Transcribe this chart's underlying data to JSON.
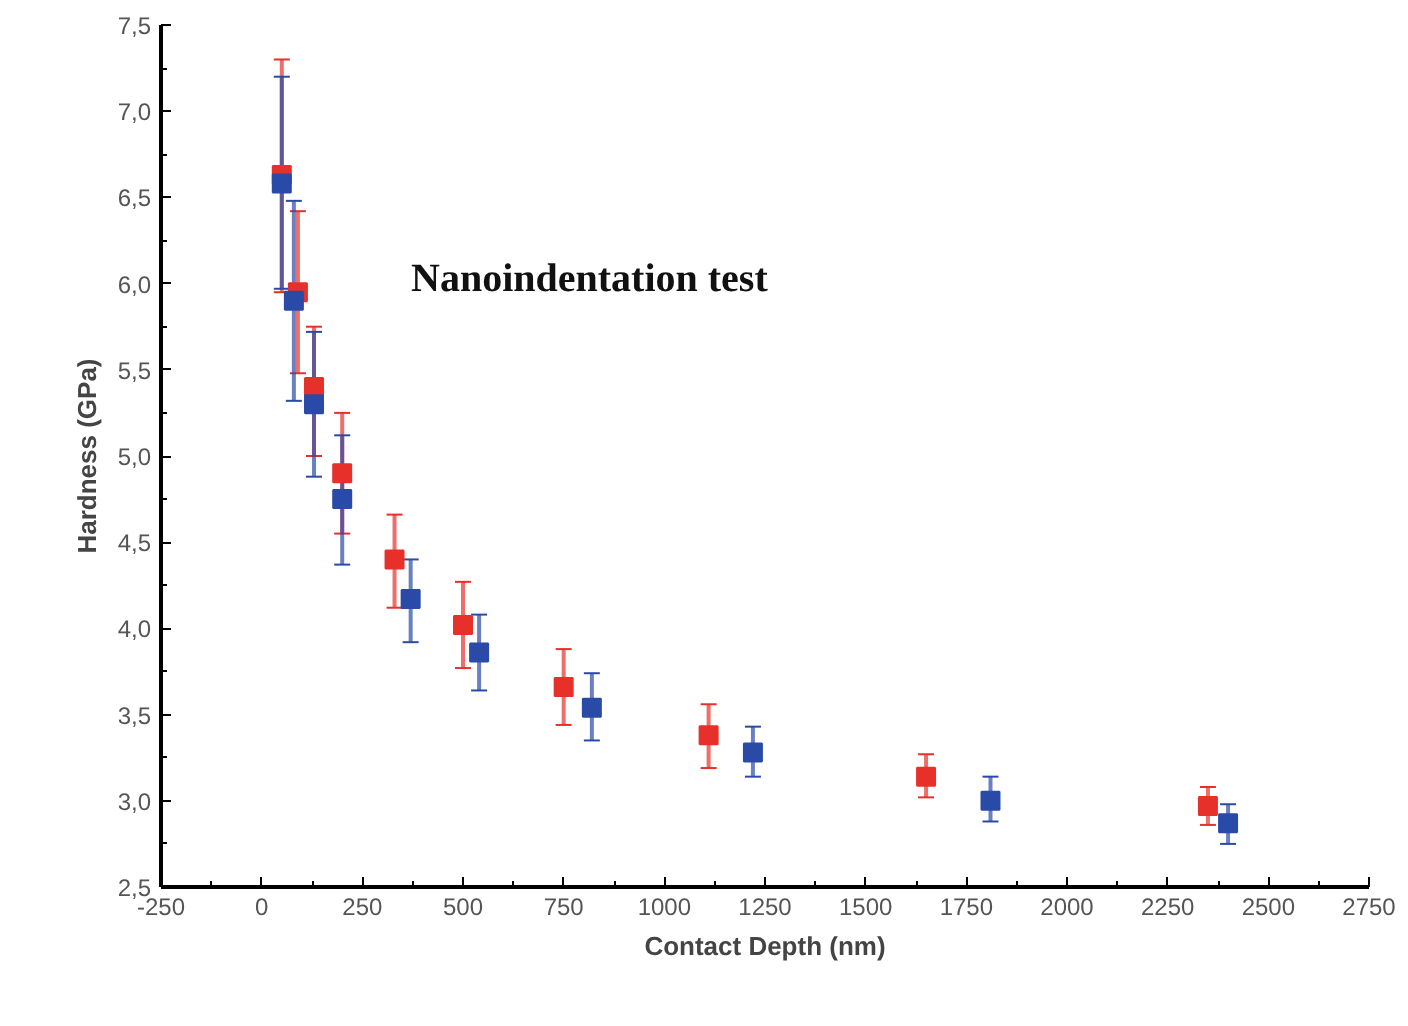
{
  "chart_data": {
    "type": "scatter",
    "xlabel": "Contact Depth (nm)",
    "ylabel": "Hardness (GPa)",
    "annotations": [
      "Nanoindentation test"
    ],
    "marker": "square",
    "grid": false,
    "xlim": [
      -250,
      2750
    ],
    "xticks": [
      -250,
      0,
      250,
      500,
      750,
      1000,
      1250,
      1500,
      1750,
      2000,
      2250,
      2500,
      2750
    ],
    "ylim": [
      2.5,
      7.5
    ],
    "yticks": [
      {
        "value": 2.5,
        "label": "2,5"
      },
      {
        "value": 3,
        "label": "3,0"
      },
      {
        "value": 3.5,
        "label": "3,5"
      },
      {
        "value": 4,
        "label": "4,0"
      },
      {
        "value": 4.5,
        "label": "4,5"
      },
      {
        "value": 5,
        "label": "5,0"
      },
      {
        "value": 5.5,
        "label": "5,5"
      },
      {
        "value": 6,
        "label": "6,0"
      },
      {
        "value": 6.5,
        "label": "6,5"
      },
      {
        "value": 7,
        "label": "7,0"
      },
      {
        "value": 7.5,
        "label": "7,5"
      }
    ],
    "series": [
      {
        "color": "#e8302a",
        "x": [
          50,
          90,
          130,
          200,
          330,
          500,
          750,
          1110,
          1650,
          2350
        ],
        "values": [
          6.63,
          5.95,
          5.4,
          4.9,
          4.4,
          4.02,
          3.66,
          3.38,
          3.14,
          2.97
        ],
        "errors": [
          [
            5.95,
            7.3
          ],
          [
            5.48,
            6.42
          ],
          [
            5.0,
            5.75
          ],
          [
            4.55,
            5.25
          ],
          [
            4.12,
            4.66
          ],
          [
            3.77,
            4.27
          ],
          [
            3.44,
            3.88
          ],
          [
            3.19,
            3.56
          ],
          [
            3.02,
            3.27
          ],
          [
            2.86,
            3.08
          ]
        ]
      },
      {
        "color": "#2a4aa8",
        "x": [
          50,
          80,
          130,
          200,
          370,
          540,
          820,
          1220,
          1810,
          2400
        ],
        "values": [
          6.58,
          5.9,
          5.3,
          4.75,
          4.17,
          3.86,
          3.54,
          3.28,
          3.0,
          2.87
        ],
        "errors": [
          [
            5.97,
            7.2
          ],
          [
            5.32,
            6.48
          ],
          [
            4.88,
            5.72
          ],
          [
            4.37,
            5.12
          ],
          [
            3.92,
            4.4
          ],
          [
            3.64,
            4.08
          ],
          [
            3.35,
            3.74
          ],
          [
            3.14,
            3.43
          ],
          [
            2.88,
            3.14
          ],
          [
            2.75,
            2.98
          ]
        ]
      }
    ]
  }
}
